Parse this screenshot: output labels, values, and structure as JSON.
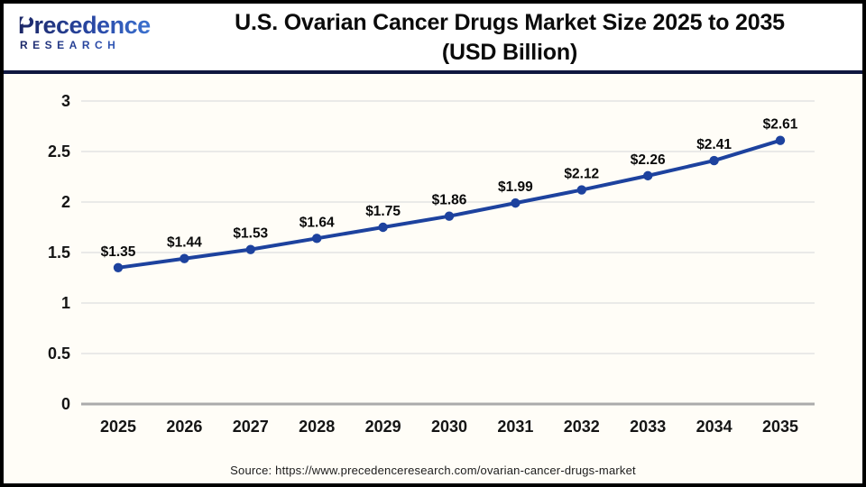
{
  "header": {
    "logo_brand": "Precedence",
    "logo_sub": "RESEARCH",
    "title_line1": "U.S. Ovarian Cancer Drugs Market Size 2025 to 2035",
    "title_line2": "(USD Billion)"
  },
  "chart_data": {
    "type": "line",
    "title": "U.S. Ovarian Cancer Drugs Market Size 2025 to 2035 (USD Billion)",
    "xlabel": "",
    "ylabel": "",
    "categories": [
      "2025",
      "2026",
      "2027",
      "2028",
      "2029",
      "2030",
      "2031",
      "2032",
      "2033",
      "2034",
      "2035"
    ],
    "values": [
      1.35,
      1.44,
      1.53,
      1.64,
      1.75,
      1.86,
      1.99,
      2.12,
      2.26,
      2.41,
      2.61
    ],
    "point_labels": [
      "$1.35",
      "$1.44",
      "$1.53",
      "$1.64",
      "$1.75",
      "$1.86",
      "$1.99",
      "$2.12",
      "$2.26",
      "$2.41",
      "$2.61"
    ],
    "ylim": [
      0,
      3
    ],
    "yticks": [
      0,
      0.5,
      1,
      1.5,
      2,
      2.5,
      3
    ],
    "ytick_labels": [
      "0",
      "0.5",
      "1",
      "1.5",
      "2",
      "2.5",
      "3"
    ],
    "grid": true,
    "legend": "none",
    "line_color": "#1d429e"
  },
  "footer": {
    "source_text": "Source: https://www.precedenceresearch.com/ovarian-cancer-drugs-market"
  },
  "style_colors": {
    "accent_navy": "#0f173f",
    "grid_line": "#e4e4e4",
    "axis_line": "#ababab",
    "logo_navy": "#1c2766",
    "logo_blue": "#3f7ad8",
    "series_blue": "#1d429e"
  }
}
